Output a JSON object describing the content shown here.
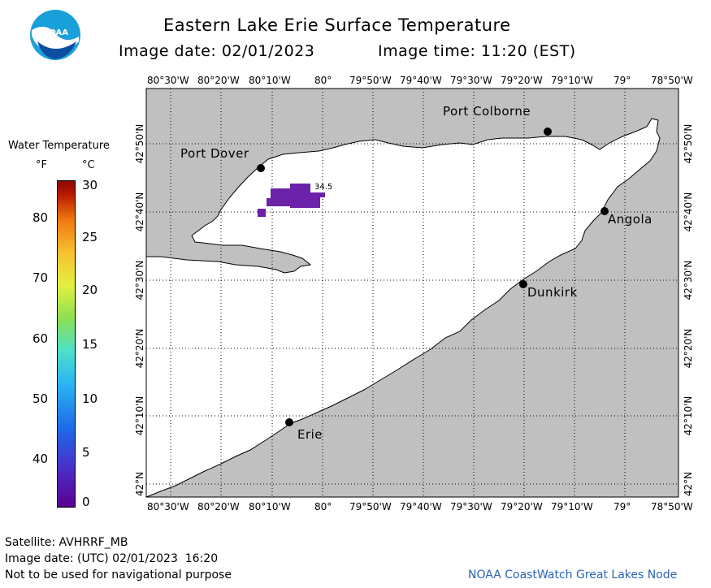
{
  "header": {
    "title": "Eastern Lake Erie Surface Temperature",
    "image_date": "Image date: 02/01/2023",
    "image_time": "Image time: 11:20 (EST)"
  },
  "logo": {
    "text": "NOAA",
    "icon": "noaa-logo-icon"
  },
  "map": {
    "lon_labels": [
      "80°30'W",
      "80°20'W",
      "80°10'W",
      "80°",
      "79°50'W",
      "79°40'W",
      "79°30'W",
      "79°20'W",
      "79°10'W",
      "79°",
      "78°50'W"
    ],
    "lat_labels": [
      "42°50'N",
      "42°40'N",
      "42°30'N",
      "42°20'N",
      "42°10'N",
      "42°N"
    ],
    "cities": [
      "Port Colborne",
      "Port Dover",
      "Angola",
      "Dunkirk",
      "Erie"
    ],
    "temp_label": "34.5",
    "colors": {
      "land": "#c0c0c0",
      "water": "#ffffff",
      "anomaly": "#6b22a8"
    }
  },
  "legend": {
    "title": "Water Temperature",
    "unit_f": "°F",
    "unit_c": "°C",
    "f_ticks": [
      "80",
      "70",
      "60",
      "50",
      "40"
    ],
    "c_ticks": [
      "30",
      "25",
      "20",
      "15",
      "10",
      "5",
      "0"
    ]
  },
  "footer": {
    "satellite": "Satellite: AVHRRF_MB",
    "utc_date": "Image date: (UTC) 02/01/2023  16:20",
    "disclaimer": "Not to be used for navigational purpose",
    "credit": "NOAA CoastWatch Great Lakes Node"
  }
}
